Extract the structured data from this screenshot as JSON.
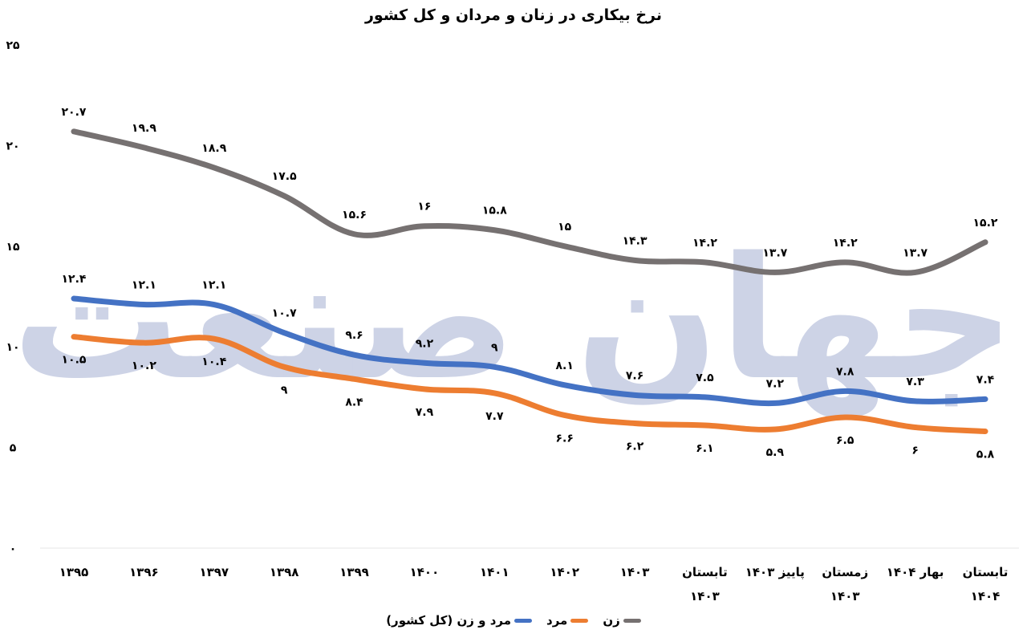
{
  "chart_data": {
    "type": "line",
    "title": "نرخ بیکاری در زنان و مردان و کل کشور",
    "xlabel": "",
    "ylabel": "",
    "ylim": [
      0,
      25
    ],
    "yticks": [
      "۰",
      "۵",
      "۱۰",
      "۱۵",
      "۲۰",
      "۲۵"
    ],
    "ytick_values": [
      0,
      5,
      10,
      15,
      20,
      25
    ],
    "grid": false,
    "legend_position": "bottom",
    "smooth": true,
    "categories": [
      "1395",
      "1396",
      "1397",
      "1398",
      "1399",
      "1400",
      "1401",
      "1402",
      "1403",
      "Summer 1403",
      "Autumn 1403",
      "Winter 1403",
      "Spring 1404",
      "Summer 1404"
    ],
    "category_labels": [
      [
        "۱۳۹۵"
      ],
      [
        "۱۳۹۶"
      ],
      [
        "۱۳۹۷"
      ],
      [
        "۱۳۹۸"
      ],
      [
        "۱۳۹۹"
      ],
      [
        "۱۴۰۰"
      ],
      [
        "۱۴۰۱"
      ],
      [
        "۱۴۰۲"
      ],
      [
        "۱۴۰۳"
      ],
      [
        "تابستان",
        "۱۴۰۳"
      ],
      [
        "پاییز ۱۴۰۳"
      ],
      [
        "زمستان",
        "۱۴۰۳"
      ],
      [
        "بهار ۱۴۰۴"
      ],
      [
        "تابستان",
        "۱۴۰۴"
      ]
    ],
    "series": [
      {
        "name": "زن",
        "color": "#767171",
        "values": [
          20.7,
          19.9,
          18.9,
          17.5,
          15.6,
          16,
          15.8,
          15,
          14.3,
          14.2,
          13.7,
          14.2,
          13.7,
          15.2
        ],
        "labels": [
          "۲۰.۷",
          "۱۹.۹",
          "۱۸.۹",
          "۱۷.۵",
          "۱۵.۶",
          "۱۶",
          "۱۵.۸",
          "۱۵",
          "۱۴.۳",
          "۱۴.۲",
          "۱۳.۷",
          "۱۴.۲",
          "۱۳.۷",
          "۱۵.۲"
        ],
        "label_position": "above"
      },
      {
        "name": "مرد",
        "color": "#ED7D31",
        "values": [
          10.5,
          10.2,
          10.4,
          9,
          8.4,
          7.9,
          7.7,
          6.6,
          6.2,
          6.1,
          5.9,
          6.5,
          6,
          5.8
        ],
        "labels": [
          "۱۰.۵",
          "۱۰.۲",
          "۱۰.۴",
          "۹",
          "۸.۴",
          "۷.۹",
          "۷.۷",
          "۶.۶",
          "۶.۲",
          "۶.۱",
          "۵.۹",
          "۶.۵",
          "۶",
          "۵.۸"
        ],
        "label_position": "below"
      },
      {
        "name": "مرد و زن (کل کشور)",
        "color": "#4472C4",
        "values": [
          12.4,
          12.1,
          12.1,
          10.7,
          9.6,
          9.2,
          9,
          8.1,
          7.6,
          7.5,
          7.2,
          7.8,
          7.3,
          7.4
        ],
        "labels": [
          "۱۲.۴",
          "۱۲.۱",
          "۱۲.۱",
          "۱۰.۷",
          "۹.۶",
          "۹.۲",
          "۹",
          "۸.۱",
          "۷.۶",
          "۷.۵",
          "۷.۲",
          "۷.۸",
          "۷.۳",
          "۷.۴"
        ],
        "label_position": "above"
      }
    ]
  },
  "legend": {
    "items": [
      {
        "label": "زن",
        "color": "#767171"
      },
      {
        "label": "مرد",
        "color": "#ED7D31"
      },
      {
        "label": "مرد و زن (کل کشور)",
        "color": "#4472C4"
      }
    ]
  },
  "watermark": {
    "text": "جهان صنعت",
    "color": "#CDD3E6"
  }
}
